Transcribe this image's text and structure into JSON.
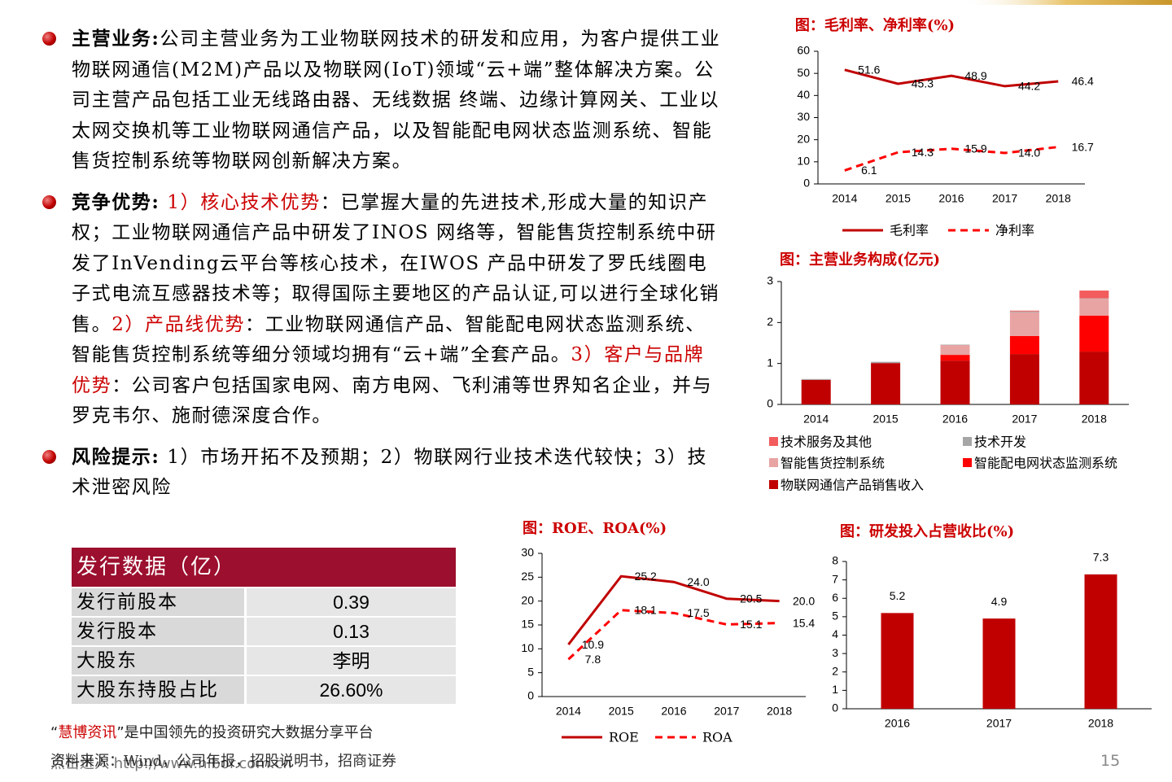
{
  "bullets": [
    {
      "label": "主营业务:",
      "segments": [
        {
          "text": "公司主营业务为工业物联网技术的研发和应用，为客户提供工业物联网通信(M2M)产品以及物联网(IoT)领域“云+端”整体解决方案。公司主营产品包括工业无线路由器、无线数据 终端、边缘计算网关、工业以太网交换机等工业物联网通信产品，以及智能配电网状态监测系统、智能售货控制系统等物联网创新解决方案。"
        }
      ]
    },
    {
      "label": "竞争优势:",
      "segments": [
        {
          "text": " 1）核心技术优势",
          "color": "#cc0000"
        },
        {
          "text": "：已掌握大量的先进技术,形成大量的知识产权；工业物联网通信产品中研发了INOS 网络等，智能售货控制系统中研发了InVending云平台等核心技术，在IWOS 产品中研发了罗氏线圈电子式电流互感器技术等；取得国际主要地区的产品认证,可以进行全球化销售。"
        },
        {
          "text": "2）产品线优势",
          "color": "#cc0000"
        },
        {
          "text": "：工业物联网通信产品、智能配电网状态监测系统、智能售货控制系统等细分领域均拥有“云+端”全套产品。"
        },
        {
          "text": "3）客户与品牌优势",
          "color": "#cc0000"
        },
        {
          "text": "：公司客户包括国家电网、南方电网、飞利浦等世界知名企业，并与罗克韦尔、施耐德深度合作。"
        }
      ]
    },
    {
      "label": "风险提示:",
      "segments": [
        {
          "text": " 1）市场开拓不及预期；2）物联网行业技术迭代较快；3）技术泄密风险"
        }
      ]
    }
  ],
  "chart_data": [
    {
      "type": "line",
      "title": "图：毛利率、净利率(%)",
      "categories": [
        "2014",
        "2015",
        "2016",
        "2017",
        "2018"
      ],
      "ylim": [
        0,
        60
      ],
      "yticks": [
        0,
        10,
        20,
        30,
        40,
        50,
        60
      ],
      "series": [
        {
          "name": "毛利率",
          "color": "#c00000",
          "line_style": "solid",
          "values": [
            51.6,
            45.3,
            48.9,
            44.2,
            46.4
          ]
        },
        {
          "name": "净利率",
          "color": "#ff0000",
          "line_style": "dashed",
          "values": [
            6.1,
            14.3,
            15.9,
            14.0,
            16.7
          ],
          "value_labels": [
            "6.1",
            "14.3",
            "15.9",
            "14.0",
            "16.7"
          ]
        }
      ]
    },
    {
      "type": "bar",
      "stacked": true,
      "title": "图：主营业务构成(亿元)",
      "categories": [
        "2014",
        "2015",
        "2016",
        "2017",
        "2018"
      ],
      "ylim": [
        0,
        3
      ],
      "yticks": [
        0,
        1,
        2,
        3
      ],
      "series": [
        {
          "name": "物联网通信产品销售收入",
          "color": "#c00000",
          "values": [
            0.6,
            1.01,
            1.07,
            1.23,
            1.29
          ]
        },
        {
          "name": "智能配电网状态监测系统",
          "color": "#ff0000",
          "values": [
            0,
            0,
            0.14,
            0.44,
            0.88
          ]
        },
        {
          "name": "智能售货控制系统",
          "color": "#e8a3a3",
          "values": [
            0,
            0,
            0.24,
            0.58,
            0.41
          ]
        },
        {
          "name": "技术开发",
          "color": "#a6a6a6",
          "values": [
            0.02,
            0.03,
            0.01,
            0.02,
            0.01
          ]
        },
        {
          "name": "技术服务及其他",
          "color": "#f25c5c",
          "values": [
            0,
            0,
            0,
            0.02,
            0.19
          ]
        }
      ]
    },
    {
      "type": "line",
      "title": "图：ROE、ROA(%)",
      "categories": [
        "2014",
        "2015",
        "2016",
        "2017",
        "2018"
      ],
      "ylim": [
        0,
        30
      ],
      "yticks": [
        0,
        5,
        10,
        15,
        20,
        25,
        30
      ],
      "series": [
        {
          "name": "ROE",
          "color": "#c00000",
          "line_style": "solid",
          "values": [
            10.9,
            25.2,
            24.0,
            20.5,
            20.0
          ],
          "value_labels": [
            "10.9",
            "25.2",
            "24.0",
            "20.5",
            "20.0"
          ]
        },
        {
          "name": "ROA",
          "color": "#ff0000",
          "line_style": "dashed",
          "values": [
            7.8,
            18.1,
            17.5,
            15.1,
            15.4
          ]
        }
      ]
    },
    {
      "type": "bar",
      "title": "图：研发投入占营收比(%)",
      "categories": [
        "2016",
        "2017",
        "2018"
      ],
      "ylim": [
        0,
        8
      ],
      "yticks": [
        0,
        1,
        2,
        3,
        4,
        5,
        6,
        7,
        8
      ],
      "series": [
        {
          "color": "#c00000",
          "values": [
            5.2,
            4.9,
            7.3
          ]
        }
      ]
    }
  ],
  "table": {
    "title": "发行数据（亿）",
    "rows": [
      [
        "发行前股本",
        "0.39"
      ],
      [
        "发行股本",
        "0.13"
      ],
      [
        "大股东",
        "李明"
      ],
      [
        "大股东持股占比",
        "26.60%"
      ]
    ]
  },
  "footer": {
    "slogan": [
      {
        "text": "“"
      },
      {
        "text": "慧博资讯",
        "color": "#cc0000"
      },
      {
        "text": "”是中国领先的投资研究大数据分享平台"
      }
    ],
    "source": "资料来源：Wind，公司年报，招股说明书，招商证券",
    "link": "点击进入 http://www.hibor.com.cn",
    "page": "15"
  }
}
